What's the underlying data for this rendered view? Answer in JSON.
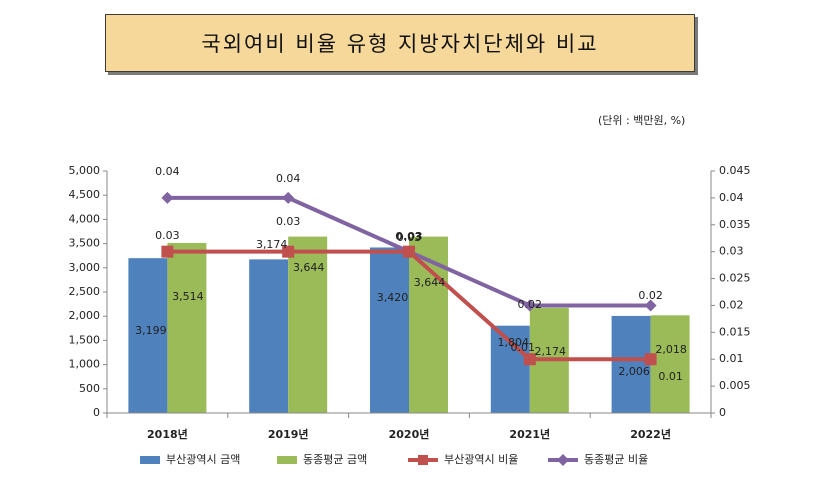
{
  "title": "국외여비 비율 유형 지방자치단체와 비교",
  "unit_note": "(단위 : 백만원, %)",
  "colors": {
    "busan_amount": "#4f81bd",
    "peer_amount": "#9bbb59",
    "busan_ratio": "#c0504d",
    "peer_ratio": "#8064a2"
  },
  "chart_data": {
    "type": "bar",
    "categories": [
      "2018년",
      "2019년",
      "2020년",
      "2021년",
      "2022년"
    ],
    "series": [
      {
        "name": "부산광역시 금액",
        "kind": "bar",
        "axis": "left",
        "values": [
          3199,
          3174,
          3420,
          1804,
          2006
        ],
        "labels": [
          "3,199",
          "3,174",
          "3,420",
          "1,804",
          "2,006"
        ]
      },
      {
        "name": "동종평균 금액",
        "kind": "bar",
        "axis": "left",
        "values": [
          3514,
          3644,
          3644,
          2174,
          2018
        ],
        "labels": [
          "3,514",
          "3,644",
          "3,644",
          "2,174",
          "2,018"
        ]
      },
      {
        "name": "부산광역시 비율",
        "kind": "line",
        "axis": "right",
        "values": [
          0.03,
          0.03,
          0.03,
          0.01,
          0.01
        ],
        "labels": [
          "0.03",
          "0.03",
          "0.03",
          "0.01",
          "0.01"
        ]
      },
      {
        "name": "동종평균 비율",
        "kind": "line",
        "axis": "right",
        "values": [
          0.04,
          0.04,
          0.03,
          0.02,
          0.02
        ],
        "labels": [
          "0.04",
          "0.04",
          "0.03",
          "0.02",
          "0.02"
        ]
      }
    ],
    "y_left": {
      "min": 0,
      "max": 5000,
      "step": 500,
      "ticks": [
        "0",
        "500",
        "1,000",
        "1,500",
        "2,000",
        "2,500",
        "3,000",
        "3,500",
        "4,000",
        "4,500",
        "5,000"
      ]
    },
    "y_right": {
      "min": 0,
      "max": 0.045,
      "step": 0.005,
      "ticks": [
        "0",
        "0.005",
        "0.01",
        "0.015",
        "0.02",
        "0.025",
        "0.03",
        "0.035",
        "0.04",
        "0.045"
      ]
    },
    "legend_position": "bottom",
    "grid": false
  }
}
